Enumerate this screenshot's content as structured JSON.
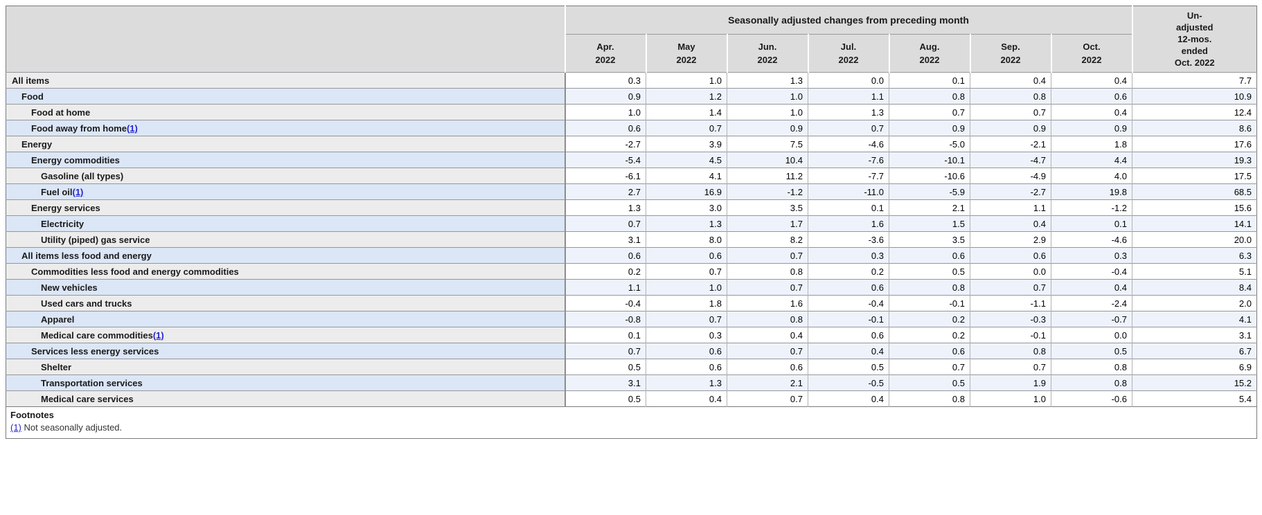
{
  "table": {
    "group_header": "Seasonally adjusted changes from preceding month",
    "unadjusted_header_lines": [
      "Un-",
      "adjusted",
      "12-mos.",
      "ended",
      "Oct. 2022"
    ],
    "columns": [
      {
        "label": "Apr.",
        "year": "2022"
      },
      {
        "label": "May",
        "year": "2022"
      },
      {
        "label": "Jun.",
        "year": "2022"
      },
      {
        "label": "Jul.",
        "year": "2022"
      },
      {
        "label": "Aug.",
        "year": "2022"
      },
      {
        "label": "Sep.",
        "year": "2022"
      },
      {
        "label": "Oct.",
        "year": "2022"
      }
    ],
    "rows": [
      {
        "label": "All items",
        "indent": 0,
        "footnote_marker": null,
        "values": [
          "0.3",
          "1.0",
          "1.3",
          "0.0",
          "0.1",
          "0.4",
          "0.4",
          "7.7"
        ]
      },
      {
        "label": "Food",
        "indent": 1,
        "footnote_marker": null,
        "values": [
          "0.9",
          "1.2",
          "1.0",
          "1.1",
          "0.8",
          "0.8",
          "0.6",
          "10.9"
        ]
      },
      {
        "label": "Food at home",
        "indent": 2,
        "footnote_marker": null,
        "values": [
          "1.0",
          "1.4",
          "1.0",
          "1.3",
          "0.7",
          "0.7",
          "0.4",
          "12.4"
        ]
      },
      {
        "label": "Food away from home",
        "indent": 2,
        "footnote_marker": "(1)",
        "values": [
          "0.6",
          "0.7",
          "0.9",
          "0.7",
          "0.9",
          "0.9",
          "0.9",
          "8.6"
        ]
      },
      {
        "label": "Energy",
        "indent": 1,
        "footnote_marker": null,
        "values": [
          "-2.7",
          "3.9",
          "7.5",
          "-4.6",
          "-5.0",
          "-2.1",
          "1.8",
          "17.6"
        ]
      },
      {
        "label": "Energy commodities",
        "indent": 2,
        "footnote_marker": null,
        "values": [
          "-5.4",
          "4.5",
          "10.4",
          "-7.6",
          "-10.1",
          "-4.7",
          "4.4",
          "19.3"
        ]
      },
      {
        "label": "Gasoline (all types)",
        "indent": 3,
        "footnote_marker": null,
        "values": [
          "-6.1",
          "4.1",
          "11.2",
          "-7.7",
          "-10.6",
          "-4.9",
          "4.0",
          "17.5"
        ]
      },
      {
        "label": "Fuel oil",
        "indent": 3,
        "footnote_marker": "(1)",
        "values": [
          "2.7",
          "16.9",
          "-1.2",
          "-11.0",
          "-5.9",
          "-2.7",
          "19.8",
          "68.5"
        ]
      },
      {
        "label": "Energy services",
        "indent": 2,
        "footnote_marker": null,
        "values": [
          "1.3",
          "3.0",
          "3.5",
          "0.1",
          "2.1",
          "1.1",
          "-1.2",
          "15.6"
        ]
      },
      {
        "label": "Electricity",
        "indent": 3,
        "footnote_marker": null,
        "values": [
          "0.7",
          "1.3",
          "1.7",
          "1.6",
          "1.5",
          "0.4",
          "0.1",
          "14.1"
        ]
      },
      {
        "label": "Utility (piped) gas service",
        "indent": 3,
        "footnote_marker": null,
        "values": [
          "3.1",
          "8.0",
          "8.2",
          "-3.6",
          "3.5",
          "2.9",
          "-4.6",
          "20.0"
        ]
      },
      {
        "label": "All items less food and energy",
        "indent": 1,
        "footnote_marker": null,
        "values": [
          "0.6",
          "0.6",
          "0.7",
          "0.3",
          "0.6",
          "0.6",
          "0.3",
          "6.3"
        ]
      },
      {
        "label": "Commodities less food and energy commodities",
        "indent": 2,
        "footnote_marker": null,
        "values": [
          "0.2",
          "0.7",
          "0.8",
          "0.2",
          "0.5",
          "0.0",
          "-0.4",
          "5.1"
        ]
      },
      {
        "label": "New vehicles",
        "indent": 3,
        "footnote_marker": null,
        "values": [
          "1.1",
          "1.0",
          "0.7",
          "0.6",
          "0.8",
          "0.7",
          "0.4",
          "8.4"
        ]
      },
      {
        "label": "Used cars and trucks",
        "indent": 3,
        "footnote_marker": null,
        "values": [
          "-0.4",
          "1.8",
          "1.6",
          "-0.4",
          "-0.1",
          "-1.1",
          "-2.4",
          "2.0"
        ]
      },
      {
        "label": "Apparel",
        "indent": 3,
        "footnote_marker": null,
        "values": [
          "-0.8",
          "0.7",
          "0.8",
          "-0.1",
          "0.2",
          "-0.3",
          "-0.7",
          "4.1"
        ]
      },
      {
        "label": "Medical care commodities",
        "indent": 3,
        "footnote_marker": "(1)",
        "values": [
          "0.1",
          "0.3",
          "0.4",
          "0.6",
          "0.2",
          "-0.1",
          "0.0",
          "3.1"
        ]
      },
      {
        "label": "Services less energy services",
        "indent": 2,
        "footnote_marker": null,
        "values": [
          "0.7",
          "0.6",
          "0.7",
          "0.4",
          "0.6",
          "0.8",
          "0.5",
          "6.7"
        ]
      },
      {
        "label": "Shelter",
        "indent": 3,
        "footnote_marker": null,
        "values": [
          "0.5",
          "0.6",
          "0.6",
          "0.5",
          "0.7",
          "0.7",
          "0.8",
          "6.9"
        ]
      },
      {
        "label": "Transportation services",
        "indent": 3,
        "footnote_marker": null,
        "values": [
          "3.1",
          "1.3",
          "2.1",
          "-0.5",
          "0.5",
          "1.9",
          "0.8",
          "15.2"
        ]
      },
      {
        "label": "Medical care services",
        "indent": 3,
        "footnote_marker": null,
        "values": [
          "0.5",
          "0.4",
          "0.7",
          "0.4",
          "0.8",
          "1.0",
          "-0.6",
          "5.4"
        ]
      }
    ],
    "footnotes": {
      "title": "Footnotes",
      "items": [
        {
          "marker": "(1)",
          "text": "Not seasonally adjusted."
        }
      ]
    }
  },
  "colors": {
    "header_bg": "#dcdcdc",
    "label_odd_bg": "#ececec",
    "label_even_bg": "#dbe6f6",
    "data_odd_bg": "#ffffff",
    "data_even_bg": "#eef3fb",
    "link_color": "#2424cc"
  }
}
